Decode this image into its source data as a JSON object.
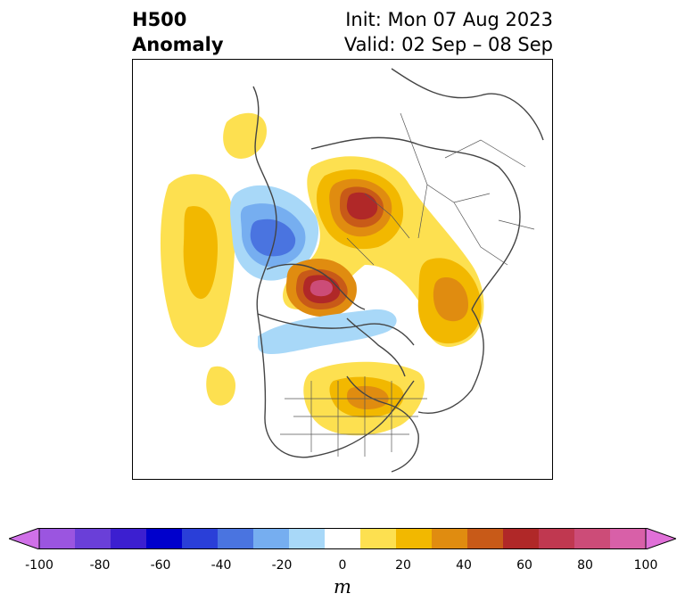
{
  "header": {
    "title_line1": "H500",
    "title_line2": "Anomaly",
    "init_text": "Init: Mon 07 Aug 2023",
    "valid_text": "Valid: 02 Sep – 08 Sep"
  },
  "map": {
    "field": "500 hPa geopotential height anomaly",
    "projection": "polar stereographic (Northern Hemisphere)"
  },
  "colorbar": {
    "unit": "m",
    "tick_labels": [
      "-100",
      "-80",
      "-60",
      "-40",
      "-20",
      "0",
      "20",
      "40",
      "60",
      "80",
      "100"
    ],
    "levels": [
      -100,
      -90,
      -80,
      -70,
      -60,
      -50,
      -40,
      -30,
      -20,
      -10,
      10,
      20,
      30,
      40,
      50,
      60,
      70,
      80,
      90,
      100
    ],
    "colors": [
      "#d070e8",
      "#9b55e0",
      "#6a3fd8",
      "#3c1fd0",
      "#0000cc",
      "#2a3fd8",
      "#4a74e0",
      "#76aef0",
      "#a8d8f8",
      "#ffffff",
      "#fde050",
      "#f2b800",
      "#e08c10",
      "#c85a18",
      "#b02828",
      "#c03850",
      "#cc4c78",
      "#d860a8",
      "#e070d8"
    ],
    "extend": "both"
  }
}
